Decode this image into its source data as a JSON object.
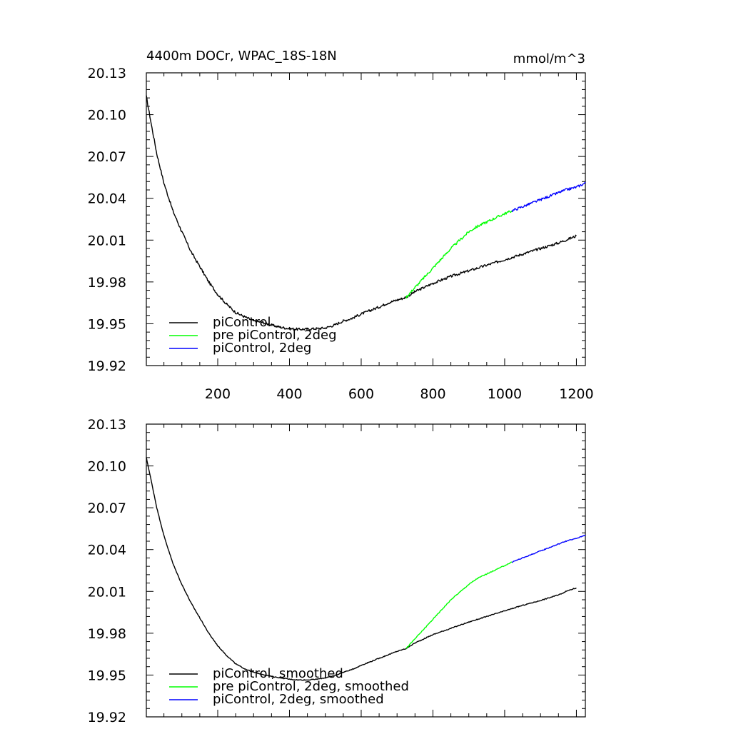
{
  "figure": {
    "title_left": "4400m DOCr, WPAC_18S-18N",
    "title_right": "mmol/m^3"
  },
  "colors": {
    "piControl": "#000000",
    "pre_2deg": "#00ff00",
    "piControl_2deg": "#0000ff"
  },
  "chart_data": [
    {
      "type": "line",
      "title": "4400m DOCr, WPAC_18S-18N",
      "units": "mmol/m^3",
      "xlim": [
        1,
        1225
      ],
      "ylim": [
        19.92,
        20.13
      ],
      "xticks": [
        200,
        400,
        600,
        800,
        1000,
        1200
      ],
      "xtick_labels": [
        "200",
        "400",
        "600",
        "800",
        "1000",
        "1200"
      ],
      "yticks": [
        19.92,
        19.95,
        19.98,
        20.01,
        20.04,
        20.07,
        20.1,
        20.13
      ],
      "ytick_labels": [
        "19.92",
        "19.95",
        "19.98",
        "20.01",
        "20.04",
        "20.07",
        "20.10",
        "20.13"
      ],
      "legend_position": "bottom-left",
      "noise": 0.0009,
      "series": [
        {
          "name": "piControl",
          "color": "#000000",
          "points": [
            [
              1,
              20.113
            ],
            [
              15,
              20.093
            ],
            [
              30,
              20.072
            ],
            [
              50,
              20.051
            ],
            [
              75,
              20.031
            ],
            [
              100,
              20.016
            ],
            [
              125,
              20.002
            ],
            [
              150,
              19.991
            ],
            [
              175,
              19.98
            ],
            [
              200,
              19.971
            ],
            [
              225,
              19.964
            ],
            [
              250,
              19.958
            ],
            [
              275,
              19.955
            ],
            [
              300,
              19.952
            ],
            [
              325,
              19.951
            ],
            [
              350,
              19.949
            ],
            [
              375,
              19.9475
            ],
            [
              400,
              19.9465
            ],
            [
              425,
              19.946
            ],
            [
              450,
              19.9462
            ],
            [
              475,
              19.9465
            ],
            [
              500,
              19.947
            ],
            [
              525,
              19.949
            ],
            [
              550,
              19.952
            ],
            [
              575,
              19.954
            ],
            [
              600,
              19.957
            ],
            [
              625,
              19.9595
            ],
            [
              650,
              19.962
            ],
            [
              675,
              19.965
            ],
            [
              700,
              19.967
            ],
            [
              725,
              19.969
            ],
            [
              750,
              19.973
            ],
            [
              775,
              19.976
            ],
            [
              800,
              19.979
            ],
            [
              850,
              19.984
            ],
            [
              900,
              19.988
            ],
            [
              950,
              19.992
            ],
            [
              1000,
              19.996
            ],
            [
              1050,
              20.0
            ],
            [
              1100,
              20.004
            ],
            [
              1150,
              20.008
            ],
            [
              1180,
              20.011
            ],
            [
              1200,
              20.013
            ]
          ]
        },
        {
          "name": "pre piControl, 2deg",
          "color": "#00ff00",
          "points": [
            [
              725,
              19.969
            ],
            [
              750,
              19.976
            ],
            [
              775,
              19.983
            ],
            [
              800,
              19.99
            ],
            [
              825,
              19.997
            ],
            [
              850,
              20.004
            ],
            [
              875,
              20.01
            ],
            [
              900,
              20.016
            ],
            [
              925,
              20.02
            ],
            [
              950,
              20.023
            ],
            [
              975,
              20.026
            ],
            [
              1000,
              20.029
            ],
            [
              1020,
              20.031
            ]
          ]
        },
        {
          "name": "piControl, 2deg",
          "color": "#0000ff",
          "points": [
            [
              1020,
              20.031
            ],
            [
              1050,
              20.034
            ],
            [
              1080,
              20.037
            ],
            [
              1110,
              20.04
            ],
            [
              1140,
              20.043
            ],
            [
              1170,
              20.046
            ],
            [
              1200,
              20.048
            ],
            [
              1225,
              20.051
            ]
          ]
        }
      ]
    },
    {
      "type": "line",
      "xlim": [
        1,
        1225
      ],
      "ylim": [
        19.92,
        20.13
      ],
      "xticks": [
        200,
        400,
        600,
        800,
        1000,
        1200
      ],
      "xtick_labels": [],
      "yticks": [
        19.92,
        19.95,
        19.98,
        20.01,
        20.04,
        20.07,
        20.1,
        20.13
      ],
      "ytick_labels": [
        "19.92",
        "19.95",
        "19.98",
        "20.01",
        "20.04",
        "20.07",
        "20.10",
        "20.13"
      ],
      "legend_position": "bottom-left",
      "noise": 0.0003,
      "series": [
        {
          "name": "piControl, smoothed",
          "color": "#000000",
          "points": [
            [
              1,
              20.106
            ],
            [
              15,
              20.089
            ],
            [
              30,
              20.07
            ],
            [
              50,
              20.05
            ],
            [
              75,
              20.03
            ],
            [
              100,
              20.015
            ],
            [
              125,
              20.002
            ],
            [
              150,
              19.991
            ],
            [
              175,
              19.98
            ],
            [
              200,
              19.971
            ],
            [
              225,
              19.964
            ],
            [
              250,
              19.958
            ],
            [
              275,
              19.9545
            ],
            [
              300,
              19.952
            ],
            [
              325,
              19.9505
            ],
            [
              350,
              19.949
            ],
            [
              375,
              19.948
            ],
            [
              400,
              19.947
            ],
            [
              425,
              19.9465
            ],
            [
              450,
              19.9465
            ],
            [
              475,
              19.947
            ],
            [
              500,
              19.948
            ],
            [
              525,
              19.9495
            ],
            [
              550,
              19.952
            ],
            [
              575,
              19.954
            ],
            [
              600,
              19.957
            ],
            [
              625,
              19.9595
            ],
            [
              650,
              19.962
            ],
            [
              675,
              19.9645
            ],
            [
              700,
              19.967
            ],
            [
              725,
              19.969
            ],
            [
              750,
              19.973
            ],
            [
              775,
              19.976
            ],
            [
              800,
              19.979
            ],
            [
              850,
              19.9835
            ],
            [
              900,
              19.988
            ],
            [
              950,
              19.992
            ],
            [
              1000,
              19.996
            ],
            [
              1050,
              20.0
            ],
            [
              1100,
              20.0035
            ],
            [
              1150,
              20.0075
            ],
            [
              1180,
              20.011
            ],
            [
              1200,
              20.0125
            ]
          ]
        },
        {
          "name": "pre piControl, 2deg, smoothed",
          "color": "#00ff00",
          "points": [
            [
              725,
              19.969
            ],
            [
              750,
              19.976
            ],
            [
              775,
              19.983
            ],
            [
              800,
              19.99
            ],
            [
              825,
              19.997
            ],
            [
              850,
              20.004
            ],
            [
              875,
              20.0095
            ],
            [
              900,
              20.015
            ],
            [
              925,
              20.0195
            ],
            [
              950,
              20.0225
            ],
            [
              975,
              20.0255
            ],
            [
              1000,
              20.0285
            ],
            [
              1020,
              20.031
            ]
          ]
        },
        {
          "name": "piControl, 2deg, smoothed",
          "color": "#0000ff",
          "points": [
            [
              1020,
              20.031
            ],
            [
              1050,
              20.034
            ],
            [
              1080,
              20.037
            ],
            [
              1110,
              20.04
            ],
            [
              1140,
              20.043
            ],
            [
              1170,
              20.046
            ],
            [
              1200,
              20.048
            ],
            [
              1225,
              20.0505
            ]
          ]
        }
      ]
    }
  ]
}
